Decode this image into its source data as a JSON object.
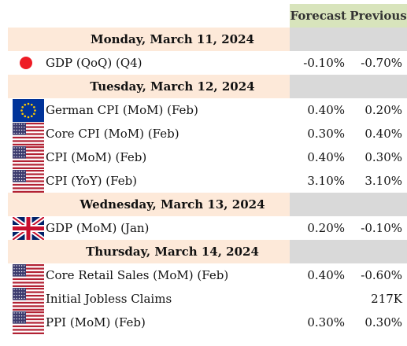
{
  "header": {
    "forecast": "Forecast",
    "previous": "Previous"
  },
  "days": [
    {
      "date": "Monday, March 11, 2024",
      "events": [
        {
          "flag": "japan-flag-icon",
          "name": "GDP (QoQ) (Q4)",
          "forecast": "-0.10%",
          "previous": "-0.70%"
        }
      ]
    },
    {
      "date": "Tuesday, March 12, 2024",
      "events": [
        {
          "flag": "eu-flag-icon",
          "name": "German CPI (MoM) (Feb)",
          "forecast": "0.40%",
          "previous": "0.20%"
        },
        {
          "flag": "us-flag-icon",
          "name": "Core CPI (MoM) (Feb)",
          "forecast": "0.30%",
          "previous": "0.40%"
        },
        {
          "flag": "us-flag-icon",
          "name": "CPI (MoM) (Feb)",
          "forecast": "0.40%",
          "previous": "0.30%"
        },
        {
          "flag": "us-flag-icon",
          "name": "CPI (YoY) (Feb)",
          "forecast": "3.10%",
          "previous": "3.10%"
        }
      ]
    },
    {
      "date": "Wednesday, March 13, 2024",
      "events": [
        {
          "flag": "uk-flag-icon",
          "name": "GDP (MoM) (Jan)",
          "forecast": "0.20%",
          "previous": "-0.10%"
        }
      ]
    },
    {
      "date": "Thursday, March 14, 2024",
      "events": [
        {
          "flag": "us-flag-icon",
          "name": "Core Retail Sales (MoM) (Feb)",
          "forecast": "0.40%",
          "previous": "-0.60%"
        },
        {
          "flag": "us-flag-icon",
          "name": "Initial Jobless Claims",
          "forecast": "",
          "previous": "217K"
        },
        {
          "flag": "us-flag-icon",
          "name": "PPI (MoM) (Feb)",
          "forecast": "0.30%",
          "previous": "0.30%"
        }
      ]
    }
  ],
  "colors": {
    "day_band": "#fde9d9",
    "header_band": "#d8e4bc",
    "gray_band": "#d9d9d9"
  }
}
